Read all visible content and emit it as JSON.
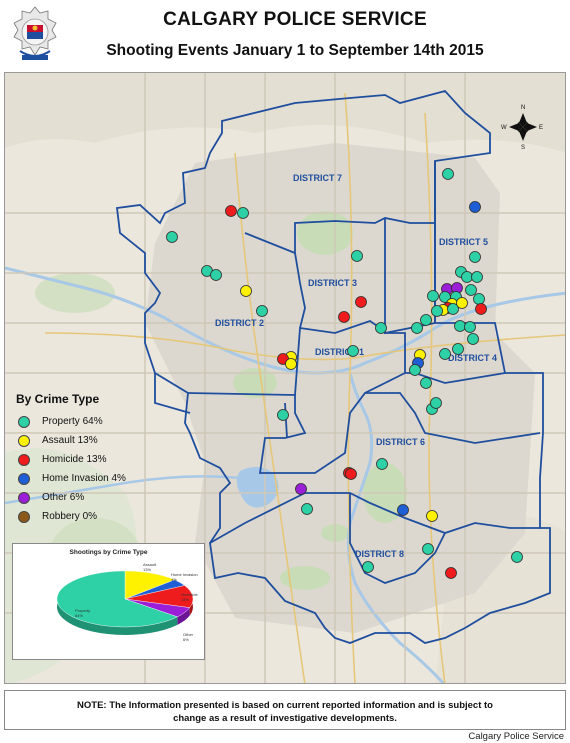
{
  "header": {
    "title": "CALGARY POLICE SERVICE",
    "subtitle": "Shooting Events January 1 to September 14th 2015"
  },
  "compass": {
    "n": "N",
    "s": "S",
    "e": "E",
    "w": "W"
  },
  "districts": [
    {
      "label": "DISTRICT 7"
    },
    {
      "label": "DISTRICT 5"
    },
    {
      "label": "DISTRICT 3"
    },
    {
      "label": "DISTRICT 2"
    },
    {
      "label": "DISTRICT 1"
    },
    {
      "label": "DISTRICT 4"
    },
    {
      "label": "DISTRICT 6"
    },
    {
      "label": "DISTRICT 8"
    }
  ],
  "legend": {
    "title": "By Crime Type",
    "items": [
      {
        "label": "Property 64%",
        "color": "#2ed1a6"
      },
      {
        "label": "Assault 13%",
        "color": "#fff200"
      },
      {
        "label": "Homicide 13%",
        "color": "#ee1c1c"
      },
      {
        "label": "Home Invasion 4%",
        "color": "#1f5fd6"
      },
      {
        "label": "Other 6%",
        "color": "#9b1fd6"
      },
      {
        "label": "Robbery 0%",
        "color": "#8b5a1a"
      }
    ]
  },
  "pie": {
    "title": "Shootings by Crime Type",
    "labels": [
      {
        "name": "Assault",
        "pct": "13%"
      },
      {
        "name": "Home Invasion",
        "pct": "4%"
      },
      {
        "name": "Homicide",
        "pct": "13%"
      },
      {
        "name": "Other",
        "pct": "6%"
      },
      {
        "name": "Property",
        "pct": "64%"
      }
    ],
    "slices": [
      {
        "name": "Assault",
        "value": 13,
        "color": "#fff200"
      },
      {
        "name": "Home Invasion",
        "value": 4,
        "color": "#1f5fd6"
      },
      {
        "name": "Homicide",
        "value": 13,
        "color": "#ee1c1c"
      },
      {
        "name": "Other",
        "value": 6,
        "color": "#9b1fd6"
      },
      {
        "name": "Property",
        "value": 64,
        "color": "#2ed1a6"
      }
    ]
  },
  "events": [
    {
      "type": "property",
      "color": "#2ed1a6"
    },
    {
      "type": "assault",
      "color": "#fff200"
    },
    {
      "type": "homicide",
      "color": "#ee1c1c"
    },
    {
      "type": "home_invasion",
      "color": "#1f5fd6"
    },
    {
      "type": "other",
      "color": "#9b1fd6"
    }
  ],
  "note": {
    "line1": "NOTE: The Information presented is based on current reported information and is subject to",
    "line2": "change as a result of investigative developments."
  },
  "credit": "Calgary Police Service"
}
